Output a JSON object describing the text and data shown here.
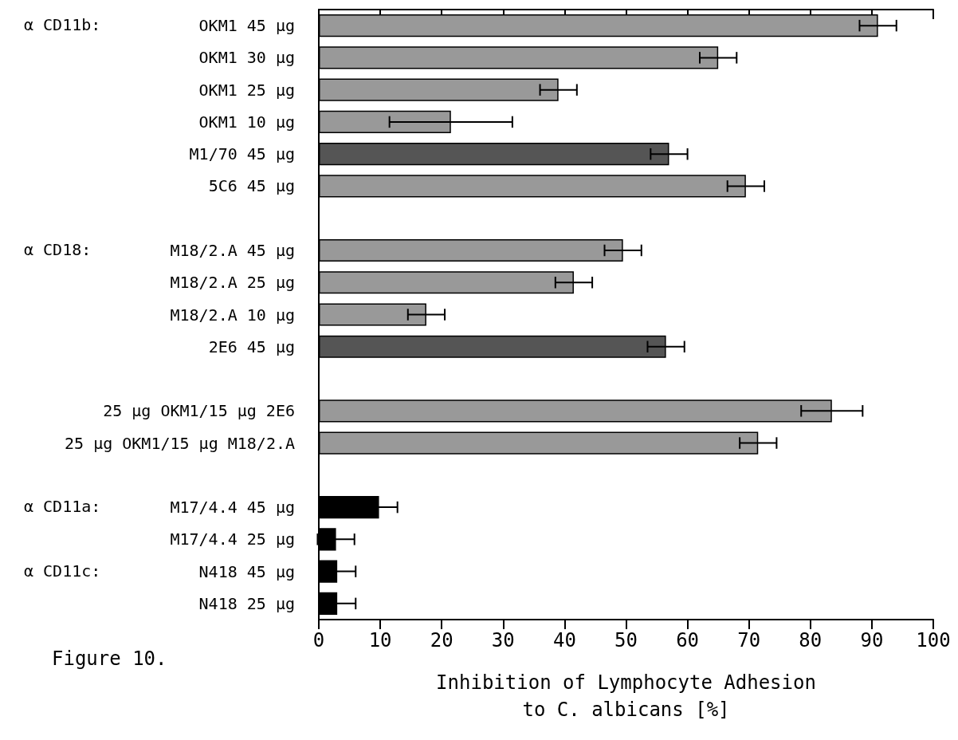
{
  "chart_data": {
    "type": "bar",
    "orientation": "horizontal",
    "categories": [
      "OKM1 45 μg",
      "OKM1 30 μg",
      "OKM1 25 μg",
      "OKM1 10 μg",
      "M1/70 45 μg",
      "5C6 45 μg",
      null,
      "M18/2.A 45 μg",
      "M18/2.A 25 μg",
      "M18/2.A 10 μg",
      "2E6 45 μg",
      null,
      "25 μg OKM1/15 μg 2E6",
      "25 μg OKM1/15 μg M18/2.A",
      null,
      "M17/4.4 45 μg",
      "M17/4.4 25 μg",
      "N418 45 μg",
      "N418 25 μg"
    ],
    "values": [
      91,
      65,
      39,
      21.5,
      57,
      69.5,
      null,
      49.5,
      41.5,
      17.5,
      56.5,
      null,
      83.5,
      71.5,
      null,
      9.8,
      2.8,
      3,
      3
    ],
    "errors": [
      3,
      3,
      3,
      10,
      3,
      3,
      null,
      3,
      3,
      3,
      3,
      null,
      5,
      3,
      null,
      3,
      3,
      3,
      3
    ],
    "colors": [
      "#999999",
      "#999999",
      "#999999",
      "#999999",
      "#555555",
      "#999999",
      null,
      "#999999",
      "#999999",
      "#999999",
      "#555555",
      null,
      "#999999",
      "#999999",
      null,
      "#000000",
      "#000000",
      "#000000",
      "#000000"
    ],
    "xlim": [
      0,
      100
    ],
    "xticks": [
      0,
      10,
      20,
      30,
      40,
      50,
      60,
      70,
      80,
      90,
      100
    ],
    "xlabel": "Inhibition of Lymphocyte Adhesion\nto C. albicans [%]",
    "annotations": [
      "α CD11b:",
      "α CD18:",
      "α CD11a:",
      "α CD11c:",
      "Figure 10."
    ],
    "grid": false
  }
}
